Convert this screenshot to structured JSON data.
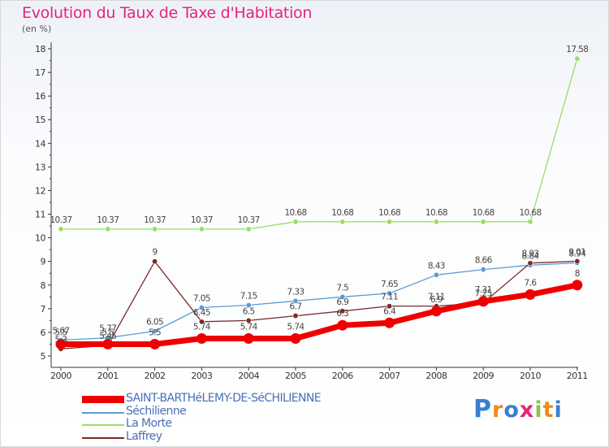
{
  "title": "Evolution du Taux de Taxe d'Habitation",
  "unit_label": "(en %)",
  "logo_text": "Proxiti",
  "chart_data": {
    "type": "line",
    "title": "Evolution du Taux de Taxe d'Habitation",
    "ylabel": "(en %)",
    "xlabel": "",
    "x": [
      "2000",
      "2001",
      "2002",
      "2003",
      "2004",
      "2005",
      "2006",
      "2007",
      "2008",
      "2009",
      "2010",
      "2011"
    ],
    "ylim": [
      5,
      18
    ],
    "yticks": [
      "5",
      "6",
      "7",
      "8",
      "9",
      "10",
      "11",
      "12",
      "13",
      "14",
      "15",
      "16",
      "17",
      "18"
    ],
    "grid": false,
    "legend_position": "bottom-left",
    "series": [
      {
        "name": "SAINT-BARTHéLEMY-DE-SéCHILIENNE",
        "color": "#ee0000",
        "values": [
          5.5,
          5.5,
          5.5,
          5.74,
          5.74,
          5.74,
          6.3,
          6.4,
          6.9,
          7.31,
          7.6,
          8
        ],
        "labels": [
          "5.5",
          "5.5",
          "5.5",
          "5.74",
          "5.74",
          "5.74",
          "6.3",
          "6.4",
          "6.9",
          "7.31",
          "7.6",
          "8"
        ]
      },
      {
        "name": "Séchilienne",
        "color": "#5b9bd5",
        "values": [
          5.67,
          5.77,
          6.05,
          7.05,
          7.15,
          7.33,
          7.5,
          7.65,
          8.43,
          8.66,
          8.84,
          8.94
        ],
        "labels": [
          "5.67",
          "5.77",
          "6.05",
          "7.05",
          "7.15",
          "7.33",
          "7.5",
          "7.65",
          "8.43",
          "8.66",
          "8.84",
          "8.94"
        ]
      },
      {
        "name": "La Morte",
        "color": "#99dd66",
        "values": [
          10.37,
          10.37,
          10.37,
          10.37,
          10.37,
          10.68,
          10.68,
          10.68,
          10.68,
          10.68,
          10.68,
          17.58
        ],
        "labels": [
          "10.37",
          "10.37",
          "10.37",
          "10.37",
          "10.37",
          "10.68",
          "10.68",
          "10.68",
          "10.68",
          "10.68",
          "10.68",
          "17.58"
        ]
      },
      {
        "name": "Laffrey",
        "color": "#7a2a2a",
        "values": [
          5.3,
          5.45,
          9,
          6.45,
          6.5,
          6.7,
          6.9,
          7.11,
          7.11,
          7.25,
          8.93,
          9.01
        ],
        "labels": [
          "5.3",
          "5.45",
          "9",
          "6.45",
          "6.5",
          "6.7",
          "6.9",
          "7.11",
          "7.11",
          "7.25",
          "8.93",
          "9.01"
        ]
      }
    ]
  }
}
